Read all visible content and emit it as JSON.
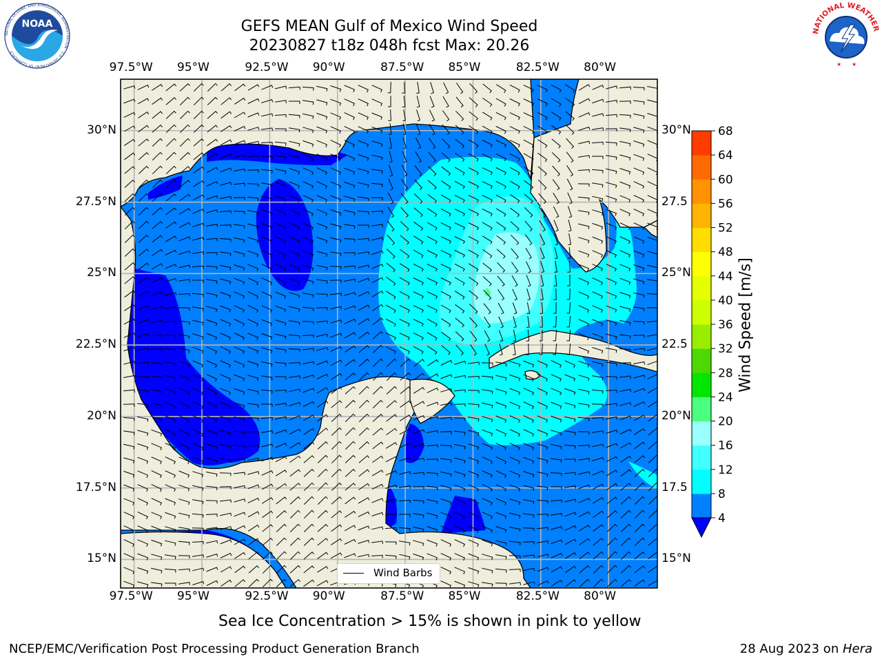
{
  "title_line1": "GEFS MEAN Gulf of Mexico Wind Speed",
  "title_line2": "20230827 t18z 048h fcst   Max: 20.26",
  "lon_ticks": [
    "97.5°W",
    "95°W",
    "92.5°W",
    "90°W",
    "87.5°W",
    "85°W",
    "82.5°W",
    "80°W"
  ],
  "lat_ticks_left": [
    "30°N",
    "27.5°N",
    "25°N",
    "22.5°N",
    "20°N",
    "17.5°N",
    "15°N"
  ],
  "lat_ticks_right": [
    "30°N",
    "27.5",
    "25°N",
    "22.5",
    "20°N",
    "17.5",
    "15°N"
  ],
  "map_extent": {
    "lon_min": -98,
    "lon_max": -78.2,
    "lat_min": 14,
    "lat_max": 31.8
  },
  "wind_max": 20.26,
  "colorbar": {
    "label": "Wind Speed [m/s]",
    "ticks": [
      "68",
      "64",
      "60",
      "56",
      "52",
      "48",
      "44",
      "40",
      "36",
      "32",
      "28",
      "24",
      "20",
      "16",
      "12",
      "8",
      "4"
    ],
    "levels": [
      4,
      8,
      12,
      16,
      20,
      24,
      28,
      32,
      36,
      40,
      44,
      48,
      52,
      56,
      60,
      64,
      68
    ],
    "colors": [
      "#0080ff",
      "#00ffff",
      "#40ffff",
      "#99ffff",
      "#4dff80",
      "#00e600",
      "#4dd900",
      "#99ed00",
      "#ccff00",
      "#e6ff00",
      "#ffff00",
      "#ffdd00",
      "#ffb400",
      "#ff9200",
      "#ff6a00",
      "#ff3c00",
      "#ff0000"
    ],
    "under_color": "#0000ff",
    "extend": "min"
  },
  "colors": {
    "land": "#efeddc",
    "grid": "#b5b5b5",
    "coast": "#000000"
  },
  "legend_label": "Wind Barbs",
  "subtitle": "Sea Ice Concentration > 15% is shown in pink to yellow",
  "footer_left": "NCEP/EMC/Verification Post Processing Product Generation Branch",
  "footer_date": "28 Aug 2023",
  "footer_on": " on ",
  "footer_machine": "Hera",
  "logos": {
    "noaa_text": "NOAA",
    "noaa_ring": "NATIONAL OCEANIC AND ATMOSPHERIC ADMINISTRATION · U.S. DEPARTMENT OF COMMERCE",
    "nws_ring": "NATIONAL WEATHER SERVICE"
  }
}
